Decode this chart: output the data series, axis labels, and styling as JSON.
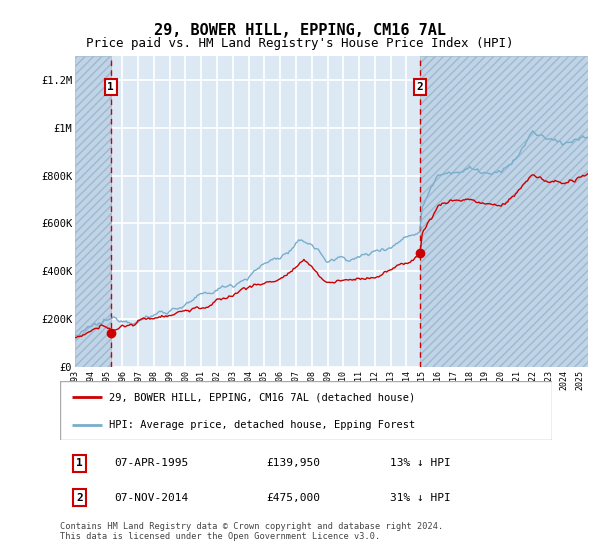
{
  "title": "29, BOWER HILL, EPPING, CM16 7AL",
  "subtitle": "Price paid vs. HM Land Registry's House Price Index (HPI)",
  "ylabel_ticks": [
    0,
    200000,
    400000,
    600000,
    800000,
    1000000,
    1200000
  ],
  "ylabel_labels": [
    "£0",
    "£200K",
    "£400K",
    "£600K",
    "£800K",
    "£1M",
    "£1.2M"
  ],
  "ylim": [
    0,
    1300000
  ],
  "xlim_start": 1993.0,
  "xlim_end": 2025.5,
  "sale1_date": 1995.27,
  "sale1_price": 139950,
  "sale2_date": 2014.85,
  "sale2_price": 475000,
  "legend_line1": "29, BOWER HILL, EPPING, CM16 7AL (detached house)",
  "legend_line2": "HPI: Average price, detached house, Epping Forest",
  "annotation1_date": "07-APR-1995",
  "annotation1_price": "£139,950",
  "annotation1_hpi": "13% ↓ HPI",
  "annotation2_date": "07-NOV-2014",
  "annotation2_price": "£475,000",
  "annotation2_hpi": "31% ↓ HPI",
  "footer": "Contains HM Land Registry data © Crown copyright and database right 2024.\nThis data is licensed under the Open Government Licence v3.0.",
  "line_color_red": "#cc0000",
  "line_color_blue": "#7aadcc",
  "bg_color": "#dce9f5",
  "hatch_color": "#c0d4e8",
  "grid_color": "#ffffff",
  "title_fontsize": 11,
  "subtitle_fontsize": 9,
  "tick_fontsize": 7.5
}
